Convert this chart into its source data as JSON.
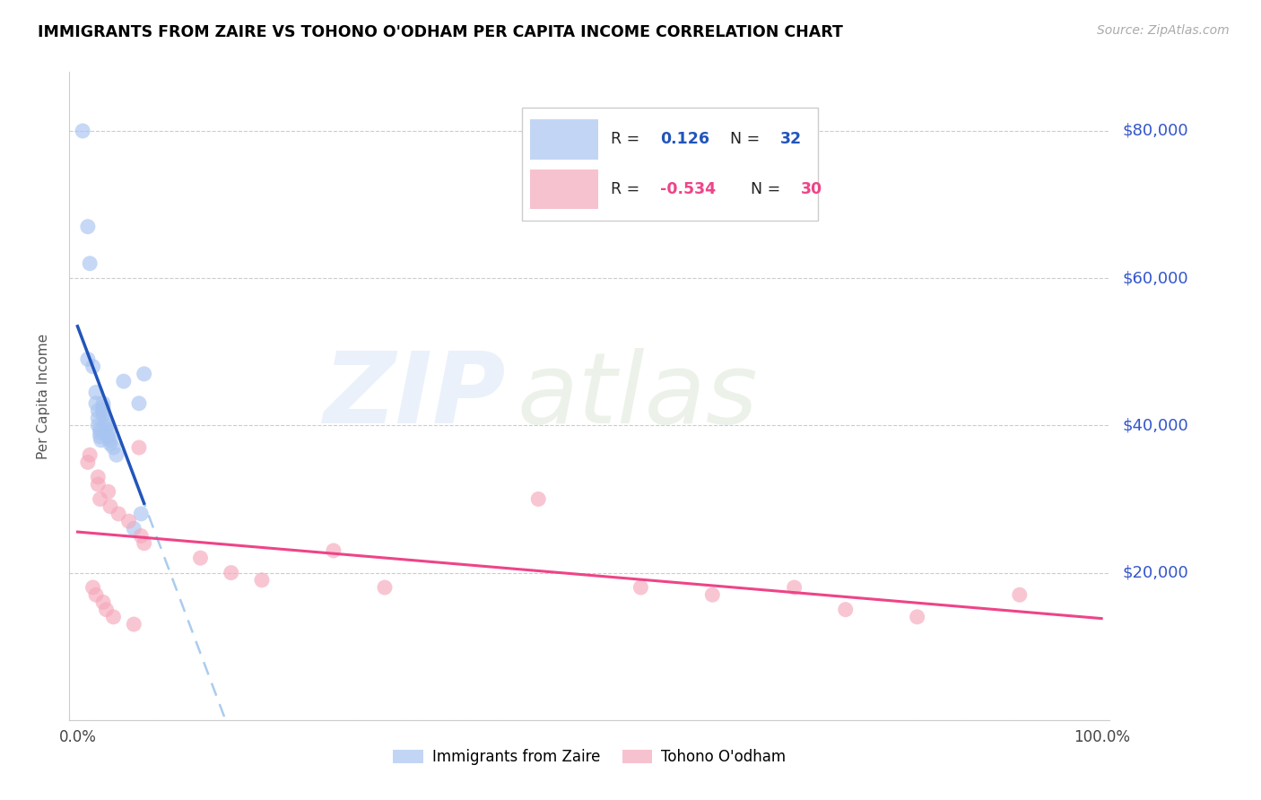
{
  "title": "IMMIGRANTS FROM ZAIRE VS TOHONO O'ODHAM PER CAPITA INCOME CORRELATION CHART",
  "source": "Source: ZipAtlas.com",
  "ylabel": "Per Capita Income",
  "blue_color": "#a8c4f0",
  "pink_color": "#f5a8bb",
  "blue_line_color": "#2255bb",
  "pink_line_color": "#ee4488",
  "blue_dashed_color": "#aaccee",
  "blue_points_x": [
    0.005,
    0.01,
    0.01,
    0.012,
    0.015,
    0.018,
    0.018,
    0.02,
    0.02,
    0.02,
    0.022,
    0.022,
    0.022,
    0.023,
    0.025,
    0.025,
    0.025,
    0.025,
    0.027,
    0.028,
    0.028,
    0.03,
    0.03,
    0.032,
    0.032,
    0.035,
    0.038,
    0.045,
    0.055,
    0.06,
    0.062,
    0.065
  ],
  "blue_points_y": [
    80000,
    67000,
    49000,
    62000,
    48000,
    44500,
    43000,
    42000,
    41000,
    40000,
    39500,
    39000,
    38500,
    38000,
    43000,
    42500,
    42000,
    41500,
    40500,
    40000,
    39500,
    39000,
    38500,
    38000,
    37500,
    37000,
    36000,
    46000,
    26000,
    43000,
    28000,
    47000
  ],
  "pink_points_x": [
    0.01,
    0.012,
    0.015,
    0.018,
    0.02,
    0.02,
    0.022,
    0.025,
    0.028,
    0.03,
    0.032,
    0.035,
    0.04,
    0.05,
    0.055,
    0.06,
    0.062,
    0.065,
    0.12,
    0.15,
    0.18,
    0.25,
    0.3,
    0.45,
    0.55,
    0.62,
    0.7,
    0.75,
    0.82,
    0.92
  ],
  "pink_points_y": [
    35000,
    36000,
    18000,
    17000,
    33000,
    32000,
    30000,
    16000,
    15000,
    31000,
    29000,
    14000,
    28000,
    27000,
    13000,
    37000,
    25000,
    24000,
    22000,
    20000,
    19000,
    23000,
    18000,
    30000,
    18000,
    17000,
    18000,
    15000,
    14000,
    17000
  ]
}
